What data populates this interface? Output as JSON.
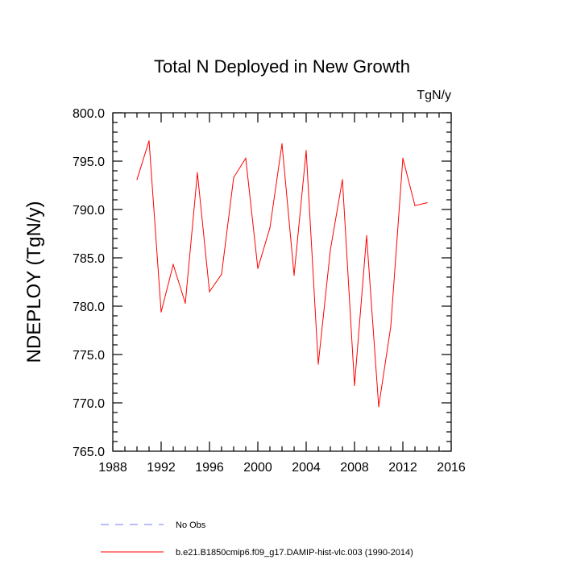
{
  "chart_data": {
    "type": "line",
    "title": "Total N Deployed in New Growth",
    "units_label": "TgN/y",
    "ylabel": "NDEPLOY  (TgN/y)",
    "xlabel": "",
    "xlim": [
      1988,
      2016
    ],
    "ylim": [
      765.0,
      800.0
    ],
    "x_ticks": [
      1988,
      1992,
      1996,
      2000,
      2004,
      2008,
      2012,
      2016
    ],
    "x_tick_labels": [
      "1988",
      "1992",
      "1996",
      "2000",
      "2004",
      "2008",
      "2012",
      "2016"
    ],
    "y_ticks": [
      765.0,
      770.0,
      775.0,
      780.0,
      785.0,
      790.0,
      795.0,
      800.0
    ],
    "y_tick_labels": [
      "765.0",
      "770.0",
      "775.0",
      "780.0",
      "785.0",
      "790.0",
      "795.0",
      "800.0"
    ],
    "grid": false,
    "series": [
      {
        "name": "b.e21.B1850cmip6.f09_g17.DAMIP-hist-vlc.003 (1990-2014)",
        "color": "#ff0000",
        "style": "solid",
        "x": [
          1990,
          1991,
          1992,
          1993,
          1994,
          1995,
          1996,
          1997,
          1998,
          1999,
          2000,
          2001,
          2002,
          2003,
          2004,
          2005,
          2006,
          2007,
          2008,
          2009,
          2010,
          2011,
          2012,
          2013,
          2014
        ],
        "values": [
          793.1,
          797.1,
          779.4,
          784.3,
          780.3,
          793.8,
          781.5,
          783.3,
          793.3,
          795.3,
          783.9,
          788.1,
          796.8,
          783.2,
          796.1,
          774.0,
          785.8,
          793.1,
          771.8,
          787.3,
          769.6,
          777.9,
          795.3,
          790.4,
          790.7
        ]
      }
    ],
    "legend": [
      {
        "label": "No Obs",
        "color": "#7777ff",
        "style": "dashed"
      },
      {
        "label": "b.e21.B1850cmip6.f09_g17.DAMIP-hist-vlc.003 (1990-2014)",
        "color": "#ff0000",
        "style": "solid"
      }
    ],
    "legend_position": "bottom"
  }
}
